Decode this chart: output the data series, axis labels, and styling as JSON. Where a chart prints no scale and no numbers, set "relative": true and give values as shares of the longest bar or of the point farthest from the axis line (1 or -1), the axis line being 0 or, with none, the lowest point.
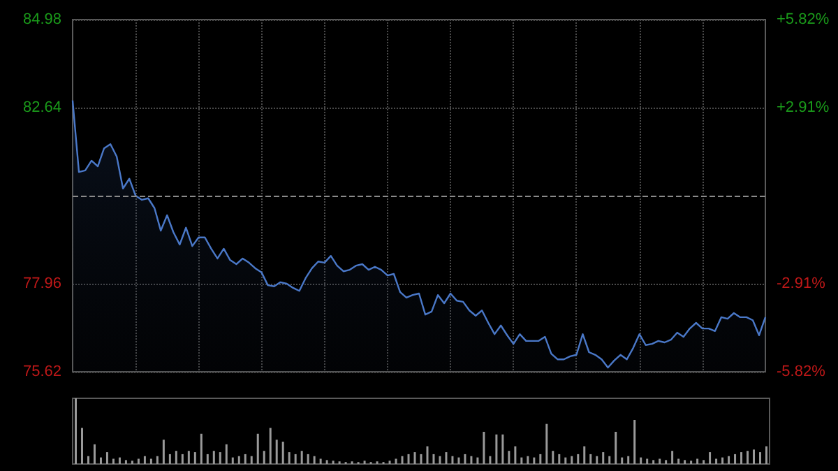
{
  "chart_data": [
    {
      "type": "area",
      "categories": [
        null,
        null,
        null,
        null,
        null,
        null,
        null,
        null,
        null,
        null,
        null,
        null,
        null,
        null,
        null,
        null,
        null,
        null,
        null,
        null,
        null,
        null,
        null,
        null,
        null,
        null,
        null,
        null,
        null,
        null,
        null,
        null,
        null,
        null,
        null,
        null,
        null,
        null,
        null,
        null,
        null,
        null,
        null,
        null,
        null,
        null,
        null,
        null,
        null,
        null,
        null,
        null,
        null,
        null,
        null,
        null,
        null,
        null,
        null,
        null,
        null,
        null,
        null,
        null,
        null,
        null,
        null,
        null,
        null,
        null,
        null,
        null,
        null,
        null,
        null,
        null,
        null,
        null,
        null,
        null,
        null,
        null,
        null,
        null,
        null,
        null,
        null,
        null,
        null,
        null,
        null,
        null,
        null,
        null,
        null,
        null,
        null,
        null,
        null,
        null,
        null,
        null,
        null,
        null,
        null,
        null,
        null,
        null,
        null,
        null,
        null
      ],
      "series": [
        {
          "color": "#4a78c8",
          "values": [
            82.83,
            80.93,
            80.97,
            81.23,
            81.08,
            81.56,
            81.67,
            81.34,
            80.49,
            80.75,
            80.3,
            80.19,
            80.23,
            79.97,
            79.37,
            79.78,
            79.33,
            79.0,
            79.45,
            78.96,
            79.19,
            79.19,
            78.89,
            78.63,
            78.89,
            78.59,
            78.48,
            78.63,
            78.52,
            78.37,
            78.26,
            77.92,
            77.89,
            78.0,
            77.96,
            77.85,
            77.77,
            78.11,
            78.37,
            78.55,
            78.52,
            78.7,
            78.44,
            78.29,
            78.33,
            78.44,
            78.48,
            78.33,
            78.41,
            78.33,
            78.18,
            78.22,
            77.74,
            77.59,
            77.66,
            77.7,
            77.14,
            77.22,
            77.66,
            77.44,
            77.7,
            77.51,
            77.48,
            77.25,
            77.11,
            77.25,
            76.92,
            76.62,
            76.85,
            76.59,
            76.36,
            76.62,
            76.44,
            76.44,
            76.44,
            76.55,
            76.1,
            75.95,
            75.95,
            76.03,
            76.07,
            76.62,
            76.14,
            76.07,
            75.95,
            75.73,
            75.92,
            76.07,
            75.95,
            76.25,
            76.62,
            76.33,
            76.36,
            76.44,
            76.4,
            76.47,
            76.66,
            76.55,
            76.77,
            76.92,
            76.77,
            76.77,
            76.7,
            77.07,
            77.03,
            77.18,
            77.07,
            77.07,
            76.99,
            76.59,
            77.07
          ]
        }
      ],
      "ylim": [
        75.62,
        84.98
      ],
      "yticks": [
        75.62,
        77.96,
        82.64,
        84.98
      ],
      "y2lim": [
        -5.82,
        5.82
      ],
      "y2ticks": [
        {
          "value": -5.82,
          "label": "-5.82%"
        },
        {
          "value": -2.91,
          "label": "-2.91%"
        },
        {
          "value": 2.91,
          "label": "+2.91%"
        },
        {
          "value": 5.82,
          "label": "+5.82%"
        }
      ],
      "ref_lines": [
        {
          "axis": "y",
          "value": 80.3,
          "color": "#8a8a8a",
          "line_style": "dashed"
        }
      ],
      "grid": true,
      "tick_labels": "y"
    },
    {
      "type": "bar",
      "relative": true,
      "categories": [
        null,
        null,
        null,
        null,
        null,
        null,
        null,
        null,
        null,
        null,
        null,
        null,
        null,
        null,
        null,
        null,
        null,
        null,
        null,
        null,
        null,
        null,
        null,
        null,
        null,
        null,
        null,
        null,
        null,
        null,
        null,
        null,
        null,
        null,
        null,
        null,
        null,
        null,
        null,
        null,
        null,
        null,
        null,
        null,
        null,
        null,
        null,
        null,
        null,
        null,
        null,
        null,
        null,
        null,
        null,
        null,
        null,
        null,
        null,
        null,
        null,
        null,
        null,
        null,
        null,
        null,
        null,
        null,
        null,
        null,
        null,
        null,
        null,
        null,
        null,
        null,
        null,
        null,
        null,
        null,
        null,
        null,
        null,
        null,
        null,
        null,
        null,
        null,
        null,
        null,
        null,
        null,
        null,
        null,
        null,
        null,
        null,
        null,
        null,
        null,
        null,
        null,
        null,
        null,
        null,
        null,
        null,
        null,
        null,
        null,
        null
      ],
      "series": [
        {
          "color": "#9a9a9a",
          "values": [
            1.0,
            0.55,
            0.12,
            0.3,
            0.1,
            0.18,
            0.08,
            0.1,
            0.06,
            0.05,
            0.08,
            0.12,
            0.08,
            0.12,
            0.37,
            0.15,
            0.2,
            0.15,
            0.2,
            0.18,
            0.46,
            0.15,
            0.2,
            0.18,
            0.3,
            0.1,
            0.12,
            0.15,
            0.12,
            0.46,
            0.2,
            0.55,
            0.37,
            0.34,
            0.18,
            0.15,
            0.2,
            0.15,
            0.12,
            0.08,
            0.06,
            0.05,
            0.04,
            0.03,
            0.04,
            0.03,
            0.05,
            0.03,
            0.04,
            0.03,
            0.05,
            0.08,
            0.12,
            0.15,
            0.18,
            0.15,
            0.27,
            0.15,
            0.12,
            0.18,
            0.12,
            0.1,
            0.15,
            0.12,
            0.1,
            0.49,
            0.12,
            0.45,
            0.45,
            0.2,
            0.27,
            0.1,
            0.12,
            0.1,
            0.15,
            0.61,
            0.2,
            0.15,
            0.1,
            0.12,
            0.15,
            0.27,
            0.15,
            0.12,
            0.18,
            0.12,
            0.49,
            0.1,
            0.12,
            0.67,
            0.1,
            0.08,
            0.06,
            0.08,
            0.06,
            0.2,
            0.08,
            0.06,
            0.05,
            0.08,
            0.06,
            0.18,
            0.08,
            0.1,
            0.12,
            0.15,
            0.18,
            0.2,
            0.22,
            0.18,
            0.27
          ]
        }
      ],
      "tick_labels": false
    }
  ]
}
